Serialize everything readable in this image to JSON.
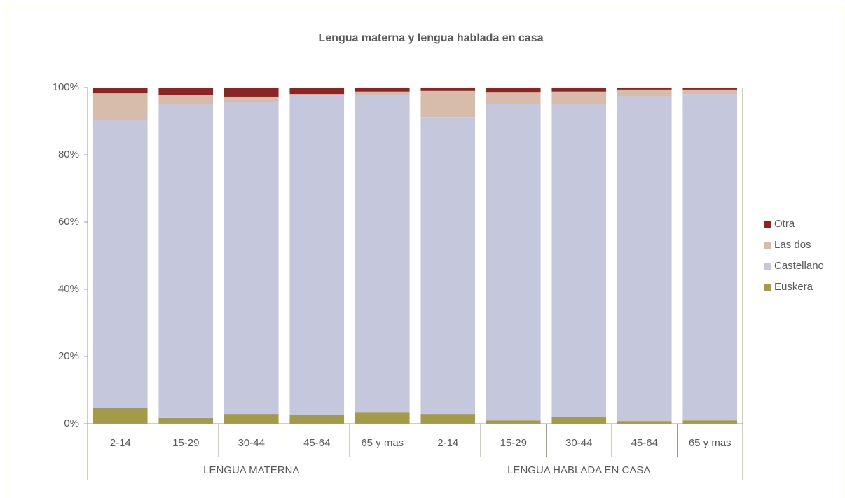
{
  "chart_data": {
    "type": "stacked_bar_100",
    "title": "Lengua materna y lengua hablada en casa",
    "groups": [
      {
        "name": "LENGUA MATERNA",
        "categories": [
          "2-14",
          "15-29",
          "30-44",
          "45-64",
          "65 y mas"
        ]
      },
      {
        "name": "LENGUA HABLADA EN CASA",
        "categories": [
          "2-14",
          "15-29",
          "30-44",
          "45-64",
          "65 y mas"
        ]
      }
    ],
    "series": [
      {
        "name": "Euskera",
        "color": "#a39b48",
        "values": [
          4.6,
          1.7,
          2.9,
          2.5,
          3.5,
          2.9,
          1.0,
          1.9,
          0.8,
          1.0
        ]
      },
      {
        "name": "Castellano",
        "color": "#c5c7dd",
        "values": [
          85.8,
          93.3,
          92.9,
          95.2,
          94.4,
          88.3,
          94.2,
          93.1,
          96.7,
          97.1
        ]
      },
      {
        "name": "Las dos",
        "color": "#d8bcab",
        "values": [
          7.9,
          2.7,
          1.5,
          0.4,
          0.9,
          7.8,
          3.3,
          3.8,
          1.9,
          1.3
        ]
      },
      {
        "name": "Otra",
        "color": "#8b2525",
        "values": [
          1.7,
          2.3,
          2.7,
          1.9,
          1.2,
          1.0,
          1.5,
          1.2,
          0.6,
          0.6
        ]
      }
    ],
    "ylim": [
      0,
      100
    ],
    "yticks": [
      {
        "value": 0,
        "label": "0%"
      },
      {
        "value": 20,
        "label": "20%"
      },
      {
        "value": 40,
        "label": "40%"
      },
      {
        "value": 60,
        "label": "60%"
      },
      {
        "value": 80,
        "label": "80%"
      },
      {
        "value": 100,
        "label": "100%"
      }
    ],
    "legend": "right"
  }
}
